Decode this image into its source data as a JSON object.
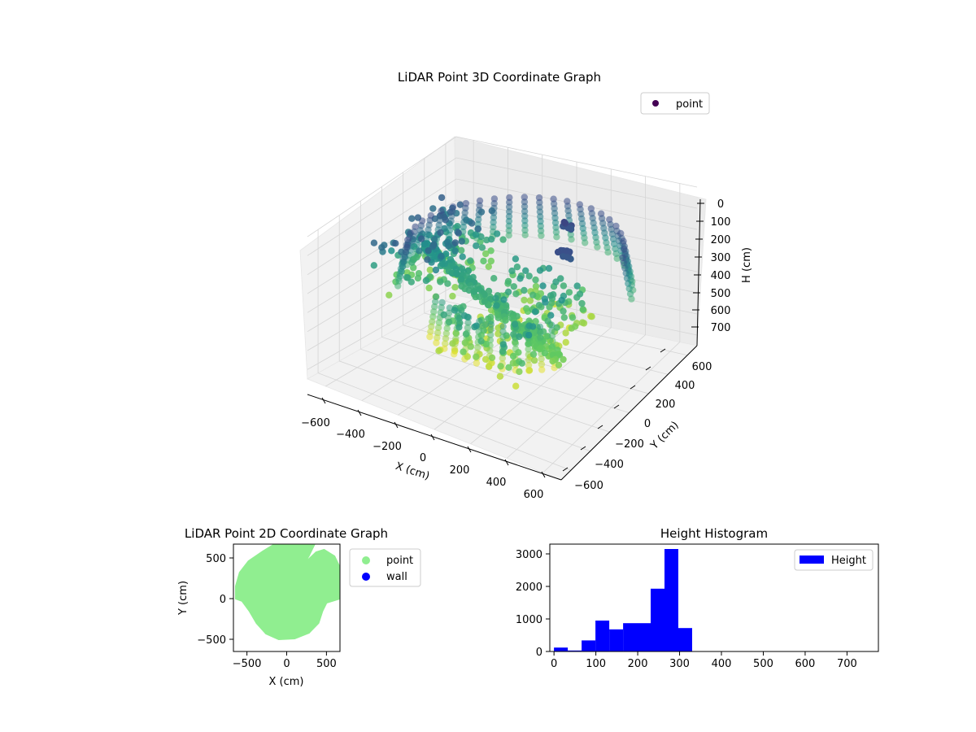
{
  "chart_data": [
    {
      "type": "scatter",
      "projection": "3d",
      "title": "LiDAR Point 3D Coordinate Graph",
      "xlabel": "X (cm)",
      "ylabel": "Y (cm)",
      "zlabel": "H (cm)",
      "xlim": [
        -700,
        700
      ],
      "ylim": [
        -700,
        700
      ],
      "zlim": [
        750,
        0
      ],
      "xticks": [
        "−600",
        "−400",
        "−200",
        "0",
        "200",
        "400",
        "600"
      ],
      "yticks": [
        "−600",
        "−400",
        "−200",
        "0",
        "200",
        "400",
        "600"
      ],
      "zticks": [
        "0",
        "100",
        "200",
        "300",
        "400",
        "500",
        "600",
        "700"
      ],
      "zaxis_inverted": true,
      "colormap": "viridis",
      "grid": true,
      "legend": {
        "placement": "top-right",
        "entries": [
          {
            "label": "point",
            "color": "#440154"
          }
        ]
      },
      "series": [
        {
          "name": "point",
          "groups": [
            {
              "shape": "ring",
              "cx": 50,
              "cy": 20,
              "r": 580,
              "a0": 20,
              "a1": 215,
              "h": [
                120,
                330
              ],
              "step": 8,
              "hstep": 25
            },
            {
              "shape": "ring",
              "cx": 50,
              "cy": 20,
              "r": 470,
              "a0": 235,
              "a1": 330,
              "h": [
                280,
                500
              ],
              "step": 8,
              "hstep": 25
            },
            {
              "shape": "fill",
              "x": [
                -100,
                400
              ],
              "y": [
                -550,
                250
              ],
              "h": [
                250,
                470
              ],
              "n": 220
            },
            {
              "shape": "fill",
              "x": [
                -600,
                -250
              ],
              "y": [
                -250,
                450
              ],
              "h": [
                150,
                420
              ],
              "n": 150
            },
            {
              "shape": "blade",
              "x0": -480,
              "y0": 50,
              "x1": 480,
              "y1": -330,
              "h0": 240,
              "h1": 380,
              "n": 60
            },
            {
              "shape": "cluster",
              "x": 280,
              "y": 120,
              "h": 130,
              "n": 12,
              "spread": 40
            },
            {
              "shape": "cluster",
              "x": 150,
              "y": 350,
              "h": 120,
              "n": 8,
              "spread": 30
            }
          ]
        }
      ]
    },
    {
      "type": "scatter",
      "title": "LiDAR Point 2D Coordinate Graph",
      "xlabel": "X (cm)",
      "ylabel": "Y (cm)",
      "xlim": [
        -670,
        670
      ],
      "ylim": [
        -650,
        670
      ],
      "xticks": [
        -500,
        0,
        500
      ],
      "yticks": [
        -500,
        0,
        500
      ],
      "xtick_labels": [
        "−500",
        "0",
        "500"
      ],
      "ytick_labels": [
        "−500",
        "0",
        "500"
      ],
      "legend": {
        "placement": "outside-right",
        "entries": [
          {
            "label": "point",
            "color": "#90ee90"
          },
          {
            "label": "wall",
            "color": "#0000ff"
          }
        ]
      },
      "series": [
        {
          "name": "point",
          "color": "#90ee90",
          "outline": [
            [
              -300,
              580
            ],
            [
              -150,
              670
            ],
            [
              150,
              670
            ],
            [
              350,
              670
            ],
            [
              280,
              530
            ],
            [
              220,
              430
            ],
            [
              370,
              570
            ],
            [
              470,
              600
            ],
            [
              600,
              520
            ],
            [
              670,
              380
            ],
            [
              670,
              0
            ],
            [
              500,
              -50
            ],
            [
              450,
              -150
            ],
            [
              400,
              -300
            ],
            [
              280,
              -420
            ],
            [
              100,
              -490
            ],
            [
              -100,
              -500
            ],
            [
              -260,
              -430
            ],
            [
              -380,
              -300
            ],
            [
              -470,
              -150
            ],
            [
              -560,
              -30
            ],
            [
              -640,
              0
            ],
            [
              -640,
              150
            ],
            [
              -590,
              320
            ],
            [
              -480,
              460
            ]
          ]
        },
        {
          "name": "wall",
          "color": "#0000ff",
          "outline": []
        }
      ]
    },
    {
      "type": "bar",
      "subtype": "histogram",
      "title": "Height Histogram",
      "xlim": [
        -10,
        775
      ],
      "ylim": [
        0,
        3300
      ],
      "xticks": [
        0,
        100,
        200,
        300,
        400,
        500,
        600,
        700
      ],
      "yticks": [
        0,
        1000,
        2000,
        3000
      ],
      "legend": {
        "placement": "top-right",
        "entries": [
          {
            "label": "Height",
            "color": "#0000ff"
          }
        ]
      },
      "series": [
        {
          "name": "Height",
          "color": "#0000ff",
          "bin_edges": [
            0,
            33,
            66,
            99,
            132,
            165,
            198,
            231,
            264,
            297,
            330
          ],
          "values": [
            120,
            30,
            340,
            950,
            680,
            870,
            870,
            1930,
            3150,
            720
          ]
        }
      ]
    }
  ]
}
